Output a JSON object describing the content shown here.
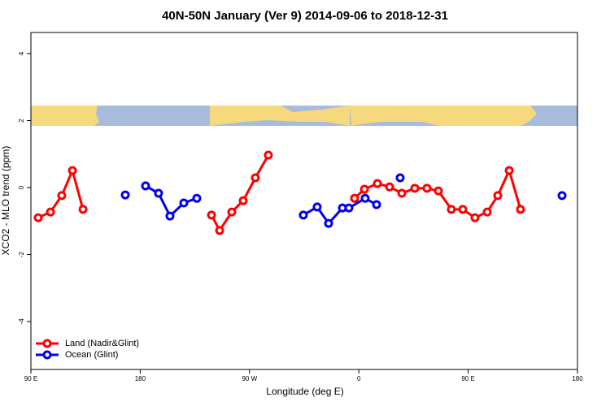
{
  "chart_data": {
    "type": "line",
    "title": "40N-50N January (Ver 9)   2014-09-06 to 2018-12-31",
    "xlabel": "Longitude (deg E)",
    "ylabel": "XCO2 - MLO trend (ppm)",
    "xlim": [
      90,
      540
    ],
    "ylim": [
      -5.43,
      4.63
    ],
    "xticks": [
      {
        "value": 90,
        "label": "90 E"
      },
      180,
      {
        "value": 270,
        "label": "90 W"
      },
      {
        "value": 360,
        "label": "0"
      },
      {
        "value": 450,
        "label": "90 E"
      },
      {
        "value": 540,
        "label": "180"
      }
    ],
    "yticks": [
      -4,
      -2,
      0,
      2,
      4
    ],
    "legend": "bottomleft",
    "series": [
      {
        "name": "Land (Nadir&Glint)",
        "color": "#ff0000",
        "x": [
          96.0,
          106.1,
          115.4,
          124.2,
          132.9,
          null,
          238.7,
          245.4,
          255.4,
          264.8,
          274.8,
          285.5,
          null,
          356.5,
          364.6,
          375.3,
          385.3,
          395.4,
          406.1,
          416.1,
          425.5,
          436.2,
          445.6,
          455.6,
          465.7,
          474.4,
          483.8,
          493.1
        ],
        "values": [
          -0.9,
          -0.73,
          -0.24,
          0.51,
          -0.65,
          null,
          -0.82,
          -1.28,
          -0.73,
          -0.39,
          0.29,
          0.97,
          null,
          -0.32,
          -0.05,
          0.12,
          0.02,
          -0.17,
          -0.02,
          -0.02,
          -0.1,
          -0.65,
          -0.65,
          -0.9,
          -0.73,
          -0.24,
          0.51,
          -0.65
        ]
      },
      {
        "name": "Ocean (Glint)",
        "color": "#0000ee",
        "x": [
          167.7,
          null,
          184.4,
          195.1,
          204.5,
          215.9,
          226.6,
          null,
          314.3,
          325.7,
          335.1,
          346.5,
          351.8,
          365.2,
          374.6,
          null,
          394.0,
          null,
          527.3
        ],
        "values": [
          -0.22,
          null,
          0.05,
          -0.17,
          -0.85,
          -0.46,
          -0.32,
          null,
          -0.82,
          -0.58,
          -1.07,
          -0.61,
          -0.61,
          -0.32,
          -0.51,
          null,
          0.29,
          null,
          -0.24
        ]
      }
    ]
  }
}
